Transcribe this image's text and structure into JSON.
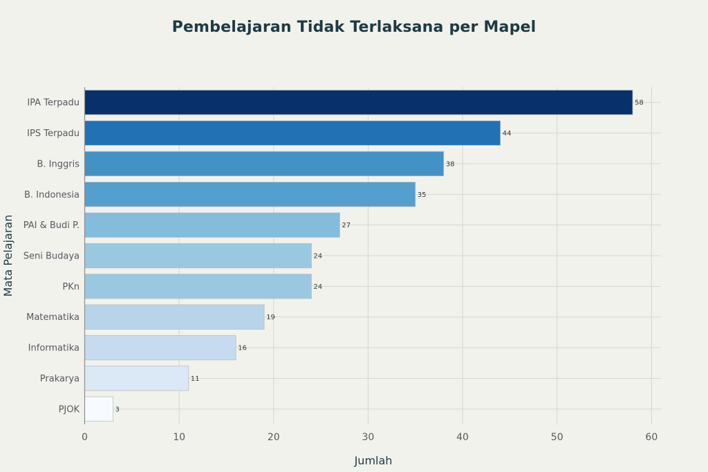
{
  "chart_data": {
    "type": "bar",
    "orientation": "horizontal",
    "title": "Pembelajaran Tidak Terlaksana per Mapel",
    "xlabel": "Jumlah",
    "ylabel": "Mata Pelajaran",
    "categories": [
      "IPA Terpadu",
      "IPS Terpadu",
      "B. Inggris",
      "B. Indonesia",
      "PAI & Budi P.",
      "Seni Budaya",
      "PKn",
      "Matematika",
      "Informatika",
      "Prakarya",
      "PJOK"
    ],
    "values": [
      58,
      44,
      38,
      35,
      27,
      24,
      24,
      19,
      16,
      11,
      3
    ],
    "colors": [
      "#08306b",
      "#2171b5",
      "#4292c6",
      "#549fce",
      "#84bcdc",
      "#9ac8e0",
      "#9ac8e0",
      "#b7d4ea",
      "#c6dbef",
      "#dbe8f6",
      "#f7fbff"
    ],
    "xlim": [
      0,
      61
    ],
    "xticks": [
      0,
      10,
      20,
      30,
      40,
      50,
      60
    ],
    "grid": true,
    "legend": false
  }
}
